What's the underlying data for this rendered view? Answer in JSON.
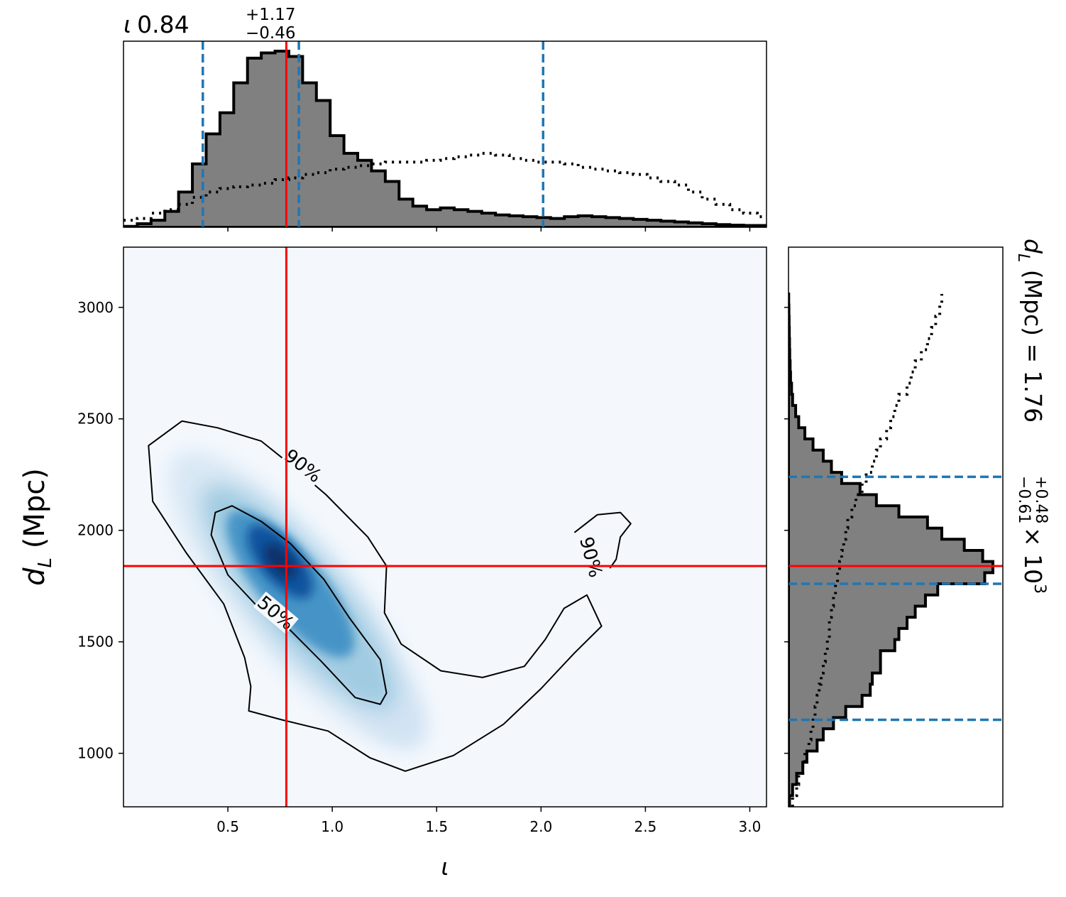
{
  "chart_data": [
    {
      "type": "area",
      "panel": "top-marginal-histogram",
      "title": "ι = 0.84",
      "title_value": "0.84",
      "title_plus": "+1.17",
      "title_minus": "−0.46",
      "xlim": [
        0.0,
        3.08
      ],
      "bin_edges": [
        0.0,
        0.066,
        0.132,
        0.198,
        0.264,
        0.33,
        0.396,
        0.462,
        0.528,
        0.594,
        0.66,
        0.726,
        0.792,
        0.858,
        0.924,
        0.99,
        1.056,
        1.122,
        1.188,
        1.254,
        1.32,
        1.386,
        1.452,
        1.518,
        1.584,
        1.65,
        1.716,
        1.782,
        1.848,
        1.914,
        1.98,
        2.046,
        2.112,
        2.178,
        2.244,
        2.31,
        2.376,
        2.442,
        2.508,
        2.574,
        2.64,
        2.706,
        2.772,
        2.838,
        2.904,
        2.97,
        3.036,
        3.08
      ],
      "posterior_density": [
        0.005,
        0.02,
        0.04,
        0.09,
        0.2,
        0.36,
        0.53,
        0.65,
        0.82,
        0.96,
        0.99,
        1.0,
        0.97,
        0.82,
        0.72,
        0.52,
        0.42,
        0.38,
        0.32,
        0.26,
        0.16,
        0.12,
        0.1,
        0.11,
        0.1,
        0.09,
        0.08,
        0.07,
        0.065,
        0.06,
        0.055,
        0.05,
        0.06,
        0.065,
        0.06,
        0.055,
        0.05,
        0.045,
        0.04,
        0.035,
        0.03,
        0.025,
        0.02,
        0.015,
        0.012,
        0.01,
        0.01
      ],
      "prior_density": [
        0.04,
        0.05,
        0.08,
        0.1,
        0.13,
        0.17,
        0.2,
        0.22,
        0.23,
        0.24,
        0.25,
        0.27,
        0.28,
        0.3,
        0.31,
        0.33,
        0.34,
        0.35,
        0.36,
        0.37,
        0.37,
        0.37,
        0.38,
        0.39,
        0.4,
        0.41,
        0.42,
        0.41,
        0.39,
        0.38,
        0.37,
        0.37,
        0.36,
        0.34,
        0.33,
        0.32,
        0.31,
        0.3,
        0.28,
        0.26,
        0.24,
        0.2,
        0.16,
        0.13,
        0.1,
        0.08,
        0.06
      ],
      "credible_lines": [
        0.38,
        0.84,
        2.01
      ],
      "truth": 0.78,
      "colors": {
        "fill": "#808080",
        "edge": "#000000",
        "credible": "#1f77b4",
        "truth": "#ff0000"
      }
    },
    {
      "type": "heatmap",
      "panel": "joint-density",
      "xlabel": "ι",
      "ylabel": "d",
      "ylabel_sub": "L",
      "ylabel_unit": " (Mpc)",
      "xlim": [
        0.0,
        3.08
      ],
      "ylim": [
        760,
        3270
      ],
      "xticks": [
        0.5,
        1.0,
        1.5,
        2.0,
        2.5,
        3.0
      ],
      "xtick_labels": [
        "0.5",
        "1.0",
        "1.5",
        "2.0",
        "2.5",
        "3.0"
      ],
      "yticks": [
        1000,
        1500,
        2000,
        2500,
        3000
      ],
      "ytick_labels": [
        "1000",
        "1500",
        "2000",
        "2500",
        "3000"
      ],
      "density_peak": {
        "x": 0.75,
        "y": 1860
      },
      "contour_labels": [
        {
          "text": "90%",
          "x": 0.86,
          "y": 2290
        },
        {
          "text": "50%",
          "x": 0.73,
          "y": 1630
        },
        {
          "text": "90%",
          "x": 2.24,
          "y": 1880
        }
      ],
      "contour_90_main": [
        [
          0.28,
          2490
        ],
        [
          0.45,
          2460
        ],
        [
          0.66,
          2400
        ],
        [
          0.82,
          2280
        ],
        [
          0.97,
          2160
        ],
        [
          1.17,
          1970
        ],
        [
          1.26,
          1840
        ],
        [
          1.25,
          1630
        ],
        [
          1.33,
          1490
        ],
        [
          1.52,
          1370
        ],
        [
          1.72,
          1340
        ],
        [
          1.92,
          1390
        ],
        [
          2.02,
          1510
        ],
        [
          2.11,
          1650
        ],
        [
          2.22,
          1710
        ],
        [
          2.29,
          1570
        ],
        [
          2.16,
          1450
        ],
        [
          2.0,
          1290
        ],
        [
          1.82,
          1130
        ],
        [
          1.58,
          990
        ],
        [
          1.35,
          920
        ],
        [
          1.18,
          980
        ],
        [
          0.98,
          1100
        ],
        [
          0.76,
          1150
        ],
        [
          0.6,
          1190
        ],
        [
          0.61,
          1300
        ],
        [
          0.58,
          1430
        ],
        [
          0.48,
          1670
        ],
        [
          0.3,
          1900
        ],
        [
          0.14,
          2130
        ],
        [
          0.12,
          2380
        ],
        [
          0.28,
          2490
        ]
      ],
      "contour_90_island": [
        [
          2.16,
          1990
        ],
        [
          2.27,
          2070
        ],
        [
          2.38,
          2080
        ],
        [
          2.43,
          2030
        ],
        [
          2.38,
          1970
        ],
        [
          2.36,
          1870
        ],
        [
          2.33,
          1830
        ]
      ],
      "contour_50": [
        [
          0.52,
          2110
        ],
        [
          0.66,
          2040
        ],
        [
          0.8,
          1940
        ],
        [
          0.96,
          1780
        ],
        [
          1.08,
          1610
        ],
        [
          1.23,
          1420
        ],
        [
          1.26,
          1270
        ],
        [
          1.23,
          1220
        ],
        [
          1.11,
          1250
        ],
        [
          0.95,
          1410
        ],
        [
          0.78,
          1570
        ],
        [
          0.64,
          1660
        ],
        [
          0.5,
          1800
        ],
        [
          0.42,
          1980
        ],
        [
          0.44,
          2080
        ],
        [
          0.52,
          2110
        ]
      ],
      "truth": {
        "x": 0.78,
        "y": 1840
      },
      "colors": {
        "cmap_low": "#f4f8fd",
        "cmap_high": "#08306b",
        "contour": "#000000",
        "truth": "#ff0000"
      }
    },
    {
      "type": "area",
      "panel": "right-marginal-histogram",
      "side_label_prefix": "d",
      "side_label_sub": "L",
      "side_label_unit": " (Mpc) = 1.76",
      "side_label_plus": "+0.48",
      "side_label_minus": "−0.61",
      "side_label_scale": " × 10",
      "side_label_exp": "3",
      "ylim": [
        760,
        3270
      ],
      "bin_edges": [
        760,
        810,
        860,
        910,
        960,
        1010,
        1060,
        1110,
        1160,
        1210,
        1260,
        1310,
        1360,
        1410,
        1460,
        1510,
        1560,
        1610,
        1660,
        1710,
        1760,
        1810,
        1860,
        1910,
        1960,
        2010,
        2060,
        2110,
        2160,
        2210,
        2260,
        2310,
        2360,
        2410,
        2460,
        2510,
        2560,
        2610,
        2660,
        2710,
        2760,
        2810,
        2860,
        2910,
        2960,
        3010,
        3060
      ],
      "posterior_density": [
        0.005,
        0.02,
        0.04,
        0.07,
        0.09,
        0.14,
        0.17,
        0.22,
        0.28,
        0.36,
        0.4,
        0.41,
        0.45,
        0.45,
        0.52,
        0.54,
        0.58,
        0.62,
        0.67,
        0.73,
        0.96,
        1.0,
        0.95,
        0.86,
        0.75,
        0.68,
        0.54,
        0.43,
        0.35,
        0.26,
        0.21,
        0.17,
        0.12,
        0.08,
        0.05,
        0.035,
        0.02,
        0.015,
        0.01,
        0.008,
        0.006,
        0.005,
        0.004,
        0.003,
        0.002,
        0.001
      ],
      "prior_density": [
        0.02,
        0.04,
        0.05,
        0.07,
        0.08,
        0.1,
        0.11,
        0.12,
        0.13,
        0.14,
        0.15,
        0.16,
        0.17,
        0.18,
        0.19,
        0.2,
        0.2,
        0.21,
        0.22,
        0.23,
        0.24,
        0.25,
        0.26,
        0.27,
        0.28,
        0.29,
        0.31,
        0.33,
        0.36,
        0.38,
        0.41,
        0.43,
        0.45,
        0.48,
        0.5,
        0.52,
        0.54,
        0.58,
        0.6,
        0.62,
        0.65,
        0.68,
        0.7,
        0.72,
        0.74,
        0.75
      ],
      "credible_lines": [
        1150,
        1760,
        2240
      ],
      "truth": 1840,
      "colors": {
        "fill": "#808080",
        "edge": "#000000",
        "credible": "#1f77b4",
        "truth": "#ff0000"
      }
    }
  ]
}
